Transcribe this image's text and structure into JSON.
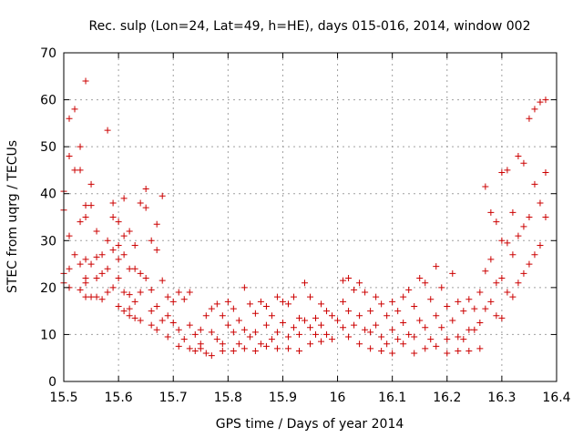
{
  "chart_data": {
    "type": "scatter",
    "title": "Rec. sulp (Lon=24, Lat=49, h=HE), days 015-016, 2014, window 002",
    "xlabel": "GPS time / Days of year 2014",
    "ylabel": "STEC from uqrg / TECUs",
    "xlim": [
      15.5,
      16.4
    ],
    "ylim": [
      0,
      70
    ],
    "xticks": [
      "15.5",
      "15.6",
      "15.7",
      "15.8",
      "15.9",
      "16",
      "16.1",
      "16.2",
      "16.3",
      "16.4"
    ],
    "yticks": [
      "0",
      "10",
      "20",
      "30",
      "40",
      "50",
      "60",
      "70"
    ],
    "grid": true,
    "marker": "+",
    "color": "#cc0000",
    "x": [
      15.5,
      15.5,
      15.5,
      15.5,
      15.51,
      15.51,
      15.51,
      15.51,
      15.51,
      15.52,
      15.52,
      15.52,
      15.53,
      15.53,
      15.53,
      15.53,
      15.53,
      15.54,
      15.54,
      15.54,
      15.54,
      15.54,
      15.54,
      15.54,
      15.55,
      15.55,
      15.55,
      15.55,
      15.56,
      15.56,
      15.56,
      15.56,
      15.57,
      15.57,
      15.57,
      15.58,
      15.58,
      15.58,
      15.58,
      15.59,
      15.59,
      15.59,
      15.59,
      15.6,
      15.6,
      15.6,
      15.6,
      15.6,
      15.61,
      15.61,
      15.61,
      15.61,
      15.61,
      15.62,
      15.62,
      15.62,
      15.62,
      15.62,
      15.63,
      15.63,
      15.63,
      15.63,
      15.64,
      15.64,
      15.64,
      15.64,
      15.65,
      15.65,
      15.65,
      15.66,
      15.66,
      15.66,
      15.66,
      15.67,
      15.67,
      15.67,
      15.67,
      15.68,
      15.68,
      15.68,
      15.69,
      15.69,
      15.69,
      15.7,
      15.7,
      15.71,
      15.71,
      15.71,
      15.72,
      15.72,
      15.73,
      15.73,
      15.73,
      15.74,
      15.74,
      15.75,
      15.75,
      15.75,
      15.76,
      15.76,
      15.77,
      15.77,
      15.77,
      15.78,
      15.78,
      15.79,
      15.79,
      15.79,
      15.8,
      15.8,
      15.81,
      15.81,
      15.81,
      15.82,
      15.82,
      15.83,
      15.83,
      15.83,
      15.84,
      15.84,
      15.85,
      15.85,
      15.85,
      15.86,
      15.86,
      15.87,
      15.87,
      15.87,
      15.88,
      15.88,
      15.89,
      15.89,
      15.89,
      15.9,
      15.9,
      15.91,
      15.91,
      15.91,
      15.92,
      15.92,
      15.93,
      15.93,
      15.93,
      15.94,
      15.94,
      15.95,
      15.95,
      15.95,
      15.96,
      15.96,
      15.97,
      15.97,
      15.97,
      15.98,
      15.98,
      15.99,
      15.99,
      16.0,
      16.01,
      16.01,
      16.01,
      16.02,
      16.02,
      16.02,
      16.03,
      16.03,
      16.04,
      16.04,
      16.04,
      16.05,
      16.05,
      16.06,
      16.06,
      16.06,
      16.07,
      16.07,
      16.08,
      16.08,
      16.08,
      16.09,
      16.09,
      16.1,
      16.1,
      16.1,
      16.11,
      16.11,
      16.12,
      16.12,
      16.12,
      16.13,
      16.13,
      16.14,
      16.14,
      16.14,
      16.15,
      16.15,
      16.16,
      16.16,
      16.16,
      16.17,
      16.17,
      16.18,
      16.18,
      16.18,
      16.19,
      16.19,
      16.2,
      16.2,
      16.2,
      16.21,
      16.21,
      16.22,
      16.22,
      16.22,
      16.23,
      16.23,
      16.24,
      16.24,
      16.24,
      16.25,
      16.25,
      16.26,
      16.26,
      16.26,
      16.27,
      16.27,
      16.27,
      16.28,
      16.28,
      16.28,
      16.29,
      16.29,
      16.29,
      16.3,
      16.3,
      16.3,
      16.3,
      16.31,
      16.31,
      16.31,
      16.32,
      16.32,
      16.32,
      16.33,
      16.33,
      16.33,
      16.34,
      16.34,
      16.34,
      16.35,
      16.35,
      16.35,
      16.36,
      16.36,
      16.36,
      16.37,
      16.37,
      16.37,
      16.38,
      16.38,
      16.38
    ],
    "y": [
      36.5,
      23.0,
      21.0,
      40.5,
      48.0,
      31.0,
      24.0,
      20.0,
      56.0,
      58.0,
      45.0,
      27.0,
      50.0,
      45.0,
      34.0,
      25.0,
      19.5,
      64.0,
      37.5,
      26.0,
      21.0,
      18.0,
      35.0,
      22.0,
      42.0,
      37.5,
      25.0,
      18.0,
      32.0,
      26.5,
      22.0,
      18.0,
      27.0,
      23.0,
      17.5,
      53.5,
      30.0,
      24.0,
      19.0,
      38.0,
      35.0,
      28.0,
      20.0,
      34.0,
      29.0,
      26.0,
      22.0,
      16.0,
      39.0,
      31.0,
      27.0,
      19.0,
      15.0,
      32.0,
      24.0,
      18.5,
      15.5,
      14.0,
      29.0,
      24.0,
      17.0,
      13.5,
      38.0,
      23.0,
      19.0,
      13.0,
      41.0,
      37.0,
      22.0,
      30.0,
      19.5,
      15.0,
      12.0,
      33.5,
      28.0,
      16.0,
      11.0,
      39.5,
      21.5,
      13.0,
      9.5,
      14.0,
      18.0,
      17.0,
      12.5,
      19.0,
      11.0,
      7.5,
      17.5,
      9.0,
      12.0,
      7.0,
      19.0,
      10.0,
      6.5,
      8.0,
      11.0,
      7.0,
      14.0,
      6.0,
      15.5,
      10.5,
      5.5,
      16.5,
      9.0,
      14.0,
      8.0,
      6.5,
      17.0,
      12.0,
      15.5,
      10.5,
      6.5,
      13.0,
      8.0,
      20.0,
      11.0,
      7.0,
      16.5,
      9.5,
      14.5,
      10.5,
      6.5,
      17.0,
      8.0,
      16.0,
      12.0,
      7.5,
      14.0,
      9.0,
      18.0,
      10.5,
      7.0,
      17.0,
      12.5,
      16.5,
      9.5,
      7.0,
      18.0,
      11.5,
      13.5,
      10.0,
      6.5,
      21.0,
      13.0,
      18.0,
      11.5,
      8.0,
      13.5,
      10.0,
      16.5,
      12.0,
      8.5,
      15.0,
      10.0,
      14.0,
      9.0,
      13.0,
      21.5,
      17.0,
      11.5,
      22.0,
      15.0,
      9.5,
      19.5,
      12.0,
      21.0,
      14.0,
      8.0,
      19.0,
      11.0,
      15.0,
      10.5,
      7.0,
      18.0,
      12.0,
      16.5,
      9.5,
      6.5,
      14.0,
      8.0,
      17.0,
      11.0,
      6.0,
      15.0,
      9.0,
      18.0,
      12.5,
      8.0,
      19.5,
      10.0,
      16.0,
      9.5,
      6.0,
      22.0,
      13.0,
      21.0,
      11.5,
      7.0,
      17.5,
      9.0,
      24.5,
      14.0,
      7.5,
      20.0,
      11.5,
      16.0,
      9.0,
      6.0,
      23.0,
      13.0,
      17.0,
      9.5,
      6.5,
      15.0,
      9.0,
      17.5,
      11.0,
      6.5,
      15.5,
      11.0,
      19.0,
      12.5,
      7.0,
      41.5,
      23.5,
      15.5,
      36.0,
      26.0,
      17.0,
      34.0,
      21.0,
      14.0,
      44.5,
      30.0,
      22.0,
      13.5,
      45.0,
      29.5,
      19.0,
      36.0,
      27.0,
      18.0,
      48.0,
      31.0,
      21.0,
      46.5,
      33.0,
      23.0,
      56.0,
      35.0,
      25.0,
      58.0,
      42.0,
      27.0,
      59.5,
      38.0,
      29.0,
      60.0,
      44.5,
      35.0
    ]
  }
}
